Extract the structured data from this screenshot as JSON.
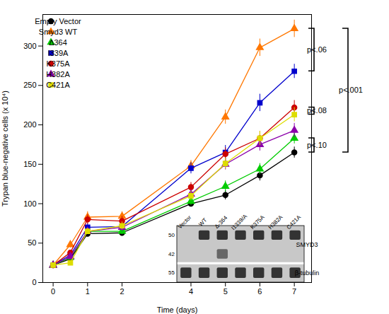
{
  "chart_data": {
    "type": "line",
    "x": [
      0,
      0.5,
      1,
      2,
      4,
      5,
      6,
      7
    ],
    "series": [
      {
        "name": "Empty Vector",
        "color": "black",
        "marker": "circle",
        "values": [
          22,
          30,
          62,
          63,
          100,
          111,
          136,
          165
        ],
        "yerr": [
          1,
          3,
          4,
          4,
          4,
          6,
          7,
          7
        ]
      },
      {
        "name": "Smyd3 WT",
        "color": "#FF7700",
        "marker": "triangle",
        "values": [
          22,
          48,
          83,
          84,
          148,
          210,
          298,
          322
        ],
        "yerr": [
          1,
          4,
          7,
          6,
          7,
          9,
          11,
          11
        ]
      },
      {
        "name": "Δ364",
        "color": "#00CC00",
        "marker": "triangle",
        "values": [
          22,
          32,
          65,
          65,
          103,
          122,
          144,
          183
        ],
        "yerr": [
          1,
          3,
          4,
          4,
          5,
          7,
          7,
          7
        ]
      },
      {
        "name": "I339A",
        "color": "#0000CC",
        "marker": "square",
        "values": [
          22,
          35,
          70,
          71,
          145,
          165,
          228,
          268
        ],
        "yerr": [
          1,
          3,
          5,
          5,
          7,
          9,
          11,
          9
        ]
      },
      {
        "name": "K375A",
        "color": "#CC0000",
        "marker": "circle",
        "values": [
          22,
          38,
          80,
          78,
          121,
          163,
          183,
          222
        ],
        "yerr": [
          1,
          3,
          6,
          6,
          6,
          8,
          9,
          9
        ]
      },
      {
        "name": "H382A",
        "color": "#8B00AA",
        "marker": "triangle",
        "values": [
          22,
          33,
          65,
          70,
          112,
          150,
          175,
          193
        ],
        "yerr": [
          1,
          3,
          4,
          5,
          5,
          7,
          8,
          9
        ]
      },
      {
        "name": "C421A",
        "color": "#DDDD00",
        "marker": "square",
        "values": [
          22,
          25,
          65,
          72,
          110,
          151,
          183,
          213
        ],
        "yerr": [
          1,
          3,
          4,
          5,
          6,
          7,
          9,
          9
        ]
      }
    ],
    "xlabel": "Time (days)",
    "ylabel": "Trypan blue-negative cells (x 10⁴)",
    "xlim": [
      -0.3,
      7.5
    ],
    "ylim": [
      0,
      340
    ],
    "xticks": [
      0,
      1,
      2,
      4,
      5,
      6,
      7
    ],
    "yticks": [
      0,
      50,
      100,
      150,
      200,
      250,
      300
    ],
    "grid": false,
    "legend": "upper left",
    "brackets": [
      {
        "label": "p<.06",
        "y": [
          268,
          322
        ]
      },
      {
        "label": "p<.08",
        "y": [
          213,
          222
        ]
      },
      {
        "label": "p<.10",
        "y": [
          165,
          183
        ]
      },
      {
        "label": "p<.001",
        "y": [
          165,
          322
        ]
      }
    ],
    "inset": {
      "color": "#C8C8C8",
      "columns": [
        "Vector",
        "WT",
        "Δ-364",
        "I1339/A",
        "K375A",
        "H382A",
        "C421A"
      ],
      "blots": [
        {
          "label": "SMYD3",
          "bands": [
            {
              "kda": 50,
              "present": [
                false,
                true,
                true,
                true,
                true,
                true,
                true
              ]
            },
            {
              "kda": 42,
              "present": [
                false,
                false,
                true,
                false,
                false,
                false,
                false
              ]
            }
          ]
        },
        {
          "label": "β-tubulin",
          "bands": [
            {
              "kda": 55,
              "present": [
                true,
                true,
                true,
                true,
                true,
                true,
                true
              ]
            }
          ]
        }
      ]
    }
  }
}
